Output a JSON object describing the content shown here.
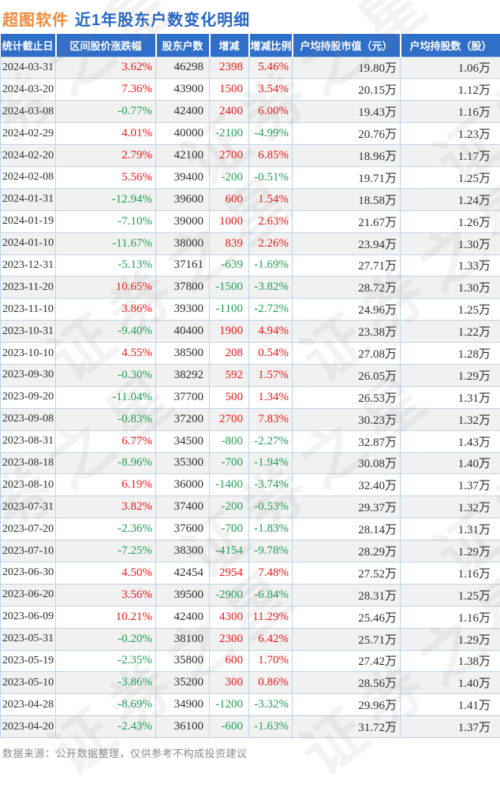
{
  "title": {
    "stock": "超图软件",
    "report": "近1年股东户数变化明细"
  },
  "colors": {
    "stock_orange": "#F28B3C",
    "title_blue": "#2667C4",
    "header_bg": "#2F6FC9",
    "up_red": "#FA1414",
    "down_green": "#1EA054",
    "row_alt_bg": "#F1F1F1",
    "grid_border": "#BCD3EA",
    "footer_gray": "#8C8C8C"
  },
  "watermark": {
    "text": "证券之星"
  },
  "footer": {
    "source_note": "数据来源：公开数据整理，仅供参考不构成投资建议"
  },
  "chart_data": {
    "type": "table",
    "title": "超图软件 近1年股东户数变化明细",
    "columns": [
      "统计截止日",
      "区间股价涨跌幅",
      "股东户数",
      "增减",
      "增减比例",
      "户均持股市值（元）",
      "户均持股数（股）"
    ],
    "rows": [
      {
        "date": "2024-03-31",
        "price_change": "3.62%",
        "price_change_dir": "up",
        "holders": "46298",
        "delta": "2398",
        "delta_dir": "up",
        "delta_pct": "5.46%",
        "delta_pct_dir": "up",
        "avg_value": "19.80万",
        "avg_shares": "1.06万"
      },
      {
        "date": "2024-03-20",
        "price_change": "7.36%",
        "price_change_dir": "up",
        "holders": "43900",
        "delta": "1500",
        "delta_dir": "up",
        "delta_pct": "3.54%",
        "delta_pct_dir": "up",
        "avg_value": "20.15万",
        "avg_shares": "1.12万"
      },
      {
        "date": "2024-03-08",
        "price_change": "-0.77%",
        "price_change_dir": "down",
        "holders": "42400",
        "delta": "2400",
        "delta_dir": "up",
        "delta_pct": "6.00%",
        "delta_pct_dir": "up",
        "avg_value": "19.43万",
        "avg_shares": "1.16万"
      },
      {
        "date": "2024-02-29",
        "price_change": "4.01%",
        "price_change_dir": "up",
        "holders": "40000",
        "delta": "-2100",
        "delta_dir": "down",
        "delta_pct": "-4.99%",
        "delta_pct_dir": "down",
        "avg_value": "20.76万",
        "avg_shares": "1.23万"
      },
      {
        "date": "2024-02-20",
        "price_change": "2.79%",
        "price_change_dir": "up",
        "holders": "42100",
        "delta": "2700",
        "delta_dir": "up",
        "delta_pct": "6.85%",
        "delta_pct_dir": "up",
        "avg_value": "18.96万",
        "avg_shares": "1.17万"
      },
      {
        "date": "2024-02-08",
        "price_change": "5.56%",
        "price_change_dir": "up",
        "holders": "39400",
        "delta": "-200",
        "delta_dir": "down",
        "delta_pct": "-0.51%",
        "delta_pct_dir": "down",
        "avg_value": "19.71万",
        "avg_shares": "1.25万"
      },
      {
        "date": "2024-01-31",
        "price_change": "-12.94%",
        "price_change_dir": "down",
        "holders": "39600",
        "delta": "600",
        "delta_dir": "up",
        "delta_pct": "1.54%",
        "delta_pct_dir": "up",
        "avg_value": "18.58万",
        "avg_shares": "1.24万"
      },
      {
        "date": "2024-01-19",
        "price_change": "-7.10%",
        "price_change_dir": "down",
        "holders": "39000",
        "delta": "1000",
        "delta_dir": "up",
        "delta_pct": "2.63%",
        "delta_pct_dir": "up",
        "avg_value": "21.67万",
        "avg_shares": "1.26万"
      },
      {
        "date": "2024-01-10",
        "price_change": "-11.67%",
        "price_change_dir": "down",
        "holders": "38000",
        "delta": "839",
        "delta_dir": "up",
        "delta_pct": "2.26%",
        "delta_pct_dir": "up",
        "avg_value": "23.94万",
        "avg_shares": "1.30万"
      },
      {
        "date": "2023-12-31",
        "price_change": "-5.13%",
        "price_change_dir": "down",
        "holders": "37161",
        "delta": "-639",
        "delta_dir": "down",
        "delta_pct": "-1.69%",
        "delta_pct_dir": "down",
        "avg_value": "27.71万",
        "avg_shares": "1.33万"
      },
      {
        "date": "2023-11-20",
        "price_change": "10.65%",
        "price_change_dir": "up",
        "holders": "37800",
        "delta": "-1500",
        "delta_dir": "down",
        "delta_pct": "-3.82%",
        "delta_pct_dir": "down",
        "avg_value": "28.72万",
        "avg_shares": "1.30万"
      },
      {
        "date": "2023-11-10",
        "price_change": "3.86%",
        "price_change_dir": "up",
        "holders": "39300",
        "delta": "-1100",
        "delta_dir": "down",
        "delta_pct": "-2.72%",
        "delta_pct_dir": "down",
        "avg_value": "24.96万",
        "avg_shares": "1.25万"
      },
      {
        "date": "2023-10-31",
        "price_change": "-9.40%",
        "price_change_dir": "down",
        "holders": "40400",
        "delta": "1900",
        "delta_dir": "up",
        "delta_pct": "4.94%",
        "delta_pct_dir": "up",
        "avg_value": "23.38万",
        "avg_shares": "1.22万"
      },
      {
        "date": "2023-10-10",
        "price_change": "4.55%",
        "price_change_dir": "up",
        "holders": "38500",
        "delta": "208",
        "delta_dir": "up",
        "delta_pct": "0.54%",
        "delta_pct_dir": "up",
        "avg_value": "27.08万",
        "avg_shares": "1.28万"
      },
      {
        "date": "2023-09-30",
        "price_change": "-0.30%",
        "price_change_dir": "down",
        "holders": "38292",
        "delta": "592",
        "delta_dir": "up",
        "delta_pct": "1.57%",
        "delta_pct_dir": "up",
        "avg_value": "26.05万",
        "avg_shares": "1.29万"
      },
      {
        "date": "2023-09-20",
        "price_change": "-11.04%",
        "price_change_dir": "down",
        "holders": "37700",
        "delta": "500",
        "delta_dir": "up",
        "delta_pct": "1.34%",
        "delta_pct_dir": "up",
        "avg_value": "26.53万",
        "avg_shares": "1.31万"
      },
      {
        "date": "2023-09-08",
        "price_change": "-0.83%",
        "price_change_dir": "down",
        "holders": "37200",
        "delta": "2700",
        "delta_dir": "up",
        "delta_pct": "7.83%",
        "delta_pct_dir": "up",
        "avg_value": "30.23万",
        "avg_shares": "1.32万"
      },
      {
        "date": "2023-08-31",
        "price_change": "6.77%",
        "price_change_dir": "up",
        "holders": "34500",
        "delta": "-800",
        "delta_dir": "down",
        "delta_pct": "-2.27%",
        "delta_pct_dir": "down",
        "avg_value": "32.87万",
        "avg_shares": "1.43万"
      },
      {
        "date": "2023-08-18",
        "price_change": "-8.96%",
        "price_change_dir": "down",
        "holders": "35300",
        "delta": "-700",
        "delta_dir": "down",
        "delta_pct": "-1.94%",
        "delta_pct_dir": "down",
        "avg_value": "30.08万",
        "avg_shares": "1.40万"
      },
      {
        "date": "2023-08-10",
        "price_change": "6.19%",
        "price_change_dir": "up",
        "holders": "36000",
        "delta": "-1400",
        "delta_dir": "down",
        "delta_pct": "-3.74%",
        "delta_pct_dir": "down",
        "avg_value": "32.40万",
        "avg_shares": "1.37万"
      },
      {
        "date": "2023-07-31",
        "price_change": "3.82%",
        "price_change_dir": "up",
        "holders": "37400",
        "delta": "-200",
        "delta_dir": "down",
        "delta_pct": "-0.53%",
        "delta_pct_dir": "down",
        "avg_value": "29.37万",
        "avg_shares": "1.32万"
      },
      {
        "date": "2023-07-20",
        "price_change": "-2.36%",
        "price_change_dir": "down",
        "holders": "37600",
        "delta": "-700",
        "delta_dir": "down",
        "delta_pct": "-1.83%",
        "delta_pct_dir": "down",
        "avg_value": "28.14万",
        "avg_shares": "1.31万"
      },
      {
        "date": "2023-07-10",
        "price_change": "-7.25%",
        "price_change_dir": "down",
        "holders": "38300",
        "delta": "-4154",
        "delta_dir": "down",
        "delta_pct": "-9.78%",
        "delta_pct_dir": "down",
        "avg_value": "28.29万",
        "avg_shares": "1.29万"
      },
      {
        "date": "2023-06-30",
        "price_change": "4.50%",
        "price_change_dir": "up",
        "holders": "42454",
        "delta": "2954",
        "delta_dir": "up",
        "delta_pct": "7.48%",
        "delta_pct_dir": "up",
        "avg_value": "27.52万",
        "avg_shares": "1.16万"
      },
      {
        "date": "2023-06-20",
        "price_change": "3.56%",
        "price_change_dir": "up",
        "holders": "39500",
        "delta": "-2900",
        "delta_dir": "down",
        "delta_pct": "-6.84%",
        "delta_pct_dir": "down",
        "avg_value": "28.31万",
        "avg_shares": "1.25万"
      },
      {
        "date": "2023-06-09",
        "price_change": "10.21%",
        "price_change_dir": "up",
        "holders": "42400",
        "delta": "4300",
        "delta_dir": "up",
        "delta_pct": "11.29%",
        "delta_pct_dir": "up",
        "avg_value": "25.46万",
        "avg_shares": "1.16万"
      },
      {
        "date": "2023-05-31",
        "price_change": "-0.20%",
        "price_change_dir": "down",
        "holders": "38100",
        "delta": "2300",
        "delta_dir": "up",
        "delta_pct": "6.42%",
        "delta_pct_dir": "up",
        "avg_value": "25.71万",
        "avg_shares": "1.29万"
      },
      {
        "date": "2023-05-19",
        "price_change": "-2.35%",
        "price_change_dir": "down",
        "holders": "35800",
        "delta": "600",
        "delta_dir": "up",
        "delta_pct": "1.70%",
        "delta_pct_dir": "up",
        "avg_value": "27.42万",
        "avg_shares": "1.38万"
      },
      {
        "date": "2023-05-10",
        "price_change": "-3.86%",
        "price_change_dir": "down",
        "holders": "35200",
        "delta": "300",
        "delta_dir": "up",
        "delta_pct": "0.86%",
        "delta_pct_dir": "up",
        "avg_value": "28.56万",
        "avg_shares": "1.40万"
      },
      {
        "date": "2023-04-28",
        "price_change": "-8.69%",
        "price_change_dir": "down",
        "holders": "34900",
        "delta": "-1200",
        "delta_dir": "down",
        "delta_pct": "-3.32%",
        "delta_pct_dir": "down",
        "avg_value": "29.96万",
        "avg_shares": "1.41万"
      },
      {
        "date": "2023-04-20",
        "price_change": "-2.43%",
        "price_change_dir": "down",
        "holders": "36100",
        "delta": "-600",
        "delta_dir": "down",
        "delta_pct": "-1.63%",
        "delta_pct_dir": "down",
        "avg_value": "31.72万",
        "avg_shares": "1.37万"
      }
    ]
  }
}
